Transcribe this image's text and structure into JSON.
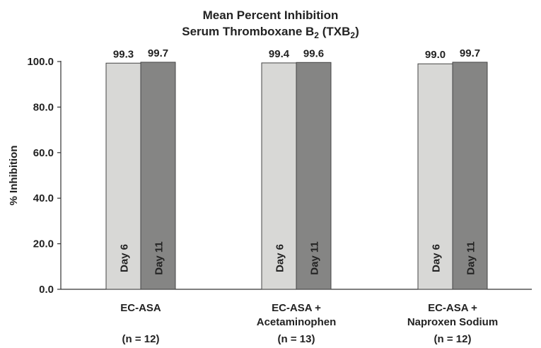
{
  "chart_data": {
    "type": "bar",
    "title_line1": "Mean Percent Inhibition",
    "title_line2_prefix": "Serum Thromboxane B",
    "title_line2_sub1": "2",
    "title_line2_mid": " (TXB",
    "title_line2_sub2": "2",
    "title_line2_suffix": ")",
    "ylabel": "% Inhibition",
    "ylim": [
      0,
      100
    ],
    "yticks": [
      "0.0",
      "20.0",
      "40.0",
      "60.0",
      "80.0",
      "100.0"
    ],
    "ytick_values": [
      0,
      20,
      40,
      60,
      80,
      100
    ],
    "categories": [
      {
        "lines": [
          "EC-ASA"
        ],
        "n": "(n = 12)"
      },
      {
        "lines": [
          "EC-ASA +",
          "Acetaminophen"
        ],
        "n": "(n = 13)"
      },
      {
        "lines": [
          "EC-ASA +",
          "Naproxen Sodium"
        ],
        "n": "(n = 12)"
      }
    ],
    "series": [
      {
        "name": "Day 6",
        "color": "#d8d8d6",
        "values": [
          99.3,
          99.4,
          99.0
        ],
        "labels": [
          "99.3",
          "99.4",
          "99.0"
        ]
      },
      {
        "name": "Day 11",
        "color": "#858584",
        "values": [
          99.7,
          99.6,
          99.7
        ],
        "labels": [
          "99.7",
          "99.6",
          "99.7"
        ]
      }
    ],
    "grid": false,
    "legend": "none"
  }
}
